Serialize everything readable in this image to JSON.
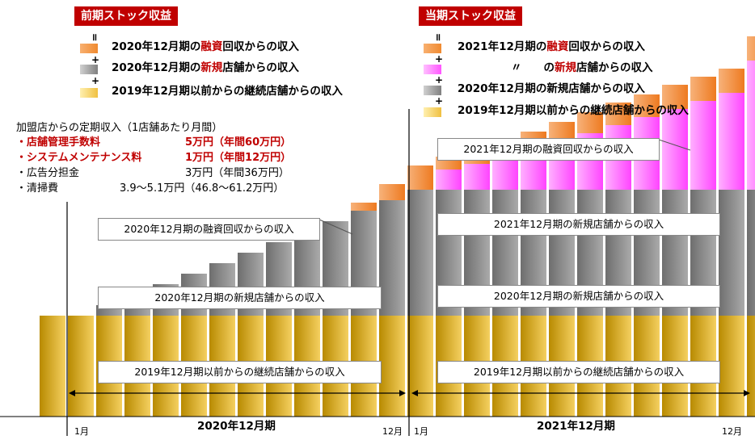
{
  "headers": {
    "prev": "前期ストック収益",
    "curr": "当期ストック収益"
  },
  "legend_prev": {
    "row1": {
      "pre": "2020年12月期の",
      "hl": "融資",
      "post": "回収からの収入"
    },
    "row2": {
      "pre": "2020年12月期の",
      "hl": "新規",
      "post": "店舗からの収入"
    },
    "row3": {
      "text": "2019年12月期以前からの継続店舗からの収入"
    },
    "equals": "॥",
    "plus": "+"
  },
  "legend_curr": {
    "row1": {
      "pre": "2021年12月期の",
      "hl": "融資",
      "post": "回収からの収入"
    },
    "row2": {
      "pre": "〃　　の",
      "hl": "新規",
      "post": "店舗からの収入"
    },
    "row3": {
      "text": "2020年12月期の新規店舗からの収入"
    },
    "row4": {
      "text": "2019年12月期以前からの継続店舗からの収入"
    },
    "equals": "॥",
    "plus": "+"
  },
  "info": {
    "title": "加盟店からの定期収入（1店舗あたり月間）",
    "rows": [
      {
        "name": "・店舗管理手数料",
        "value": "5万円（年間60万円）",
        "bold": true
      },
      {
        "name": "・システムメンテナンス料",
        "value": "1万円（年間12万円）",
        "bold": true
      },
      {
        "name": "・広告分担金",
        "value": "3万円（年間36万円）",
        "bold": false
      },
      {
        "name": "・清掃費",
        "value": "3.9～5.1万円（46.8～61.2万円）",
        "bold": false
      }
    ]
  },
  "annotations": {
    "fin2020": "2020年12月期の融資回収からの収入",
    "new2020": "2020年12月期の新規店舗からの収入",
    "cont_left": "2019年12月期以前からの継続店舗からの収入",
    "fin2021": "2021年12月期の融資回収からの収入",
    "new2021": "2021年12月期の新規店舗からの収入",
    "new2020_right": "2020年12月期の新規店舗からの収入",
    "cont_right": "2019年12月期以前からの継続店舗からの収入"
  },
  "axis": {
    "p1_start": "1月",
    "p1_end": "12月",
    "p1_label": "2020年12月期",
    "p2_start": "1月",
    "p2_end": "12月",
    "p2_label": "2021年12月期"
  },
  "colors": {
    "gold": "#e8b020",
    "gray": "#8c8c8c",
    "orange": "#f08a30",
    "magenta": "#ff55ff",
    "header_red": "#c00000",
    "highlight_red": "#c00000"
  },
  "chart_data": {
    "type": "bar",
    "stacked": true,
    "series": [
      {
        "name": "2019年12月期以前からの継続店舗からの収入",
        "values": [
          125,
          125,
          125,
          125,
          125,
          125,
          125,
          125,
          125,
          125,
          125,
          125,
          125,
          125,
          125,
          125,
          125,
          125,
          125,
          125,
          125,
          125,
          125,
          125,
          125,
          125
        ]
      },
      {
        "name": "2020年12月期の新規店舗からの収入",
        "values": [
          0,
          0,
          13,
          26,
          39,
          52,
          65,
          78,
          91,
          104,
          117,
          130,
          143,
          156,
          156,
          156,
          156,
          156,
          156,
          156,
          156,
          156,
          156,
          156,
          156,
          156
        ]
      },
      {
        "name": "2020年12月期の融資回収からの収入",
        "values": [
          0,
          0,
          0,
          0,
          0,
          0,
          0,
          0,
          0,
          0,
          0,
          10,
          20,
          30,
          0,
          0,
          0,
          0,
          0,
          0,
          0,
          0,
          0,
          0,
          0,
          0
        ]
      },
      {
        "name": "2021年12月期の新規店舗からの収入",
        "values": [
          0,
          0,
          0,
          0,
          0,
          0,
          0,
          0,
          0,
          0,
          0,
          0,
          0,
          0,
          25,
          32,
          40,
          50,
          60,
          70,
          80,
          90,
          100,
          110,
          120,
          160
        ]
      },
      {
        "name": "2021年12月期の融資回収からの収入",
        "values": [
          0,
          0,
          0,
          0,
          0,
          0,
          0,
          0,
          0,
          0,
          0,
          0,
          0,
          0,
          16,
          18,
          20,
          22,
          24,
          26,
          28,
          28,
          30,
          30,
          30,
          30
        ]
      }
    ]
  }
}
